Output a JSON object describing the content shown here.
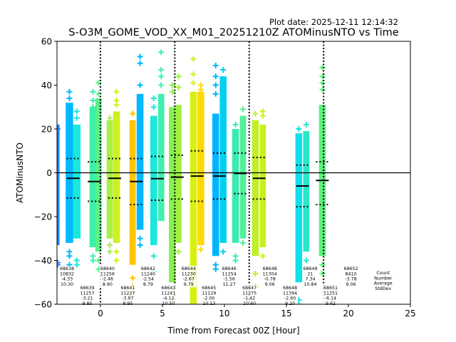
{
  "chart_data": {
    "type": "scatter",
    "title": "S-O3M_GOME_VOD_XX_M01_20251210Z ATOMinusNTO vs Time",
    "plot_date": "Plot date: 2025-12-11 12:14:32",
    "xlabel": "Time from Forecast 00Z [Hour]",
    "ylabel": "ATOMinusNTO",
    "xlim": [
      -3.5,
      25
    ],
    "ylim": [
      -60,
      60
    ],
    "xticks": [
      0,
      5,
      10,
      15,
      20,
      25
    ],
    "yticks": [
      -60,
      -40,
      -20,
      0,
      20,
      40,
      60
    ],
    "zero_line": 0,
    "forecast_markers": [
      0,
      6,
      12,
      18
    ],
    "marker": "+",
    "strips": [
      {
        "x": -3.45,
        "width": 0.3,
        "low": -33,
        "high": 22,
        "outliers": [
          -41,
          -42,
          20
        ],
        "color": "#1f80ff"
      },
      {
        "x": -2.5,
        "width": 0.6,
        "low": -32,
        "high": 32,
        "outliers": [
          -36,
          -38,
          -42,
          37,
          34,
          30
        ],
        "color": "#00b8ff"
      },
      {
        "x": -1.9,
        "width": 0.6,
        "low": -30,
        "high": 22,
        "outliers": [
          -40,
          -42,
          28,
          25
        ],
        "color": "#1ae8e0"
      },
      {
        "x": -0.6,
        "width": 0.55,
        "low": -34,
        "high": 30,
        "outliers": [
          -38,
          -40,
          37,
          33,
          30
        ],
        "color": "#3df0a8"
      },
      {
        "x": -0.15,
        "width": 0.5,
        "low": -36,
        "high": 34,
        "outliers": [
          -40,
          -44,
          41,
          36
        ],
        "color": "#5cf08a"
      },
      {
        "x": 0.75,
        "width": 0.5,
        "low": -30,
        "high": 24,
        "outliers": [
          -33,
          -36,
          25,
          22
        ],
        "color": "#aaf044"
      },
      {
        "x": 1.3,
        "width": 0.55,
        "low": -32,
        "high": 28,
        "outliers": [
          -36,
          -40,
          37,
          33,
          31
        ],
        "color": "#ccf020"
      },
      {
        "x": 2.6,
        "width": 0.5,
        "low": -42,
        "high": 24,
        "outliers": [
          -48,
          -52,
          -55,
          27,
          22
        ],
        "color": "#ffc400"
      },
      {
        "x": 3.2,
        "width": 0.55,
        "low": -26,
        "high": 36,
        "outliers": [
          -30,
          -33,
          53,
          50,
          40
        ],
        "color": "#00b8ff"
      },
      {
        "x": 4.3,
        "width": 0.55,
        "low": -33,
        "high": 26,
        "outliers": [
          -38,
          -45,
          30,
          34
        ],
        "color": "#1ae8d8"
      },
      {
        "x": 4.9,
        "width": 0.5,
        "low": -22,
        "high": 36,
        "outliers": [
          55,
          47,
          44,
          40
        ],
        "color": "#40f0b0"
      },
      {
        "x": 5.8,
        "width": 0.55,
        "low": -50,
        "high": 30,
        "outliers": [
          -54,
          -58,
          40,
          37
        ],
        "color": "#88f050"
      },
      {
        "x": 6.3,
        "width": 0.5,
        "low": -32,
        "high": 31,
        "outliers": [
          -36,
          44,
          39
        ],
        "color": "#a0f040"
      },
      {
        "x": 7.5,
        "width": 0.55,
        "low": -60,
        "high": 37,
        "outliers": [
          52,
          45,
          41
        ],
        "color": "#d8f010"
      },
      {
        "x": 8.1,
        "width": 0.55,
        "low": -33,
        "high": 37,
        "outliers": [
          -35,
          40,
          38
        ],
        "color": "#ffd800"
      },
      {
        "x": 9.3,
        "width": 0.55,
        "low": -38,
        "high": 27,
        "outliers": [
          -42,
          -44,
          49,
          44,
          40,
          36
        ],
        "color": "#00b4ff"
      },
      {
        "x": 9.9,
        "width": 0.55,
        "low": -32,
        "high": 44,
        "outliers": [
          -36,
          47
        ],
        "color": "#00d0f0"
      },
      {
        "x": 10.9,
        "width": 0.55,
        "low": -32,
        "high": 20,
        "outliers": [
          -38,
          -40,
          22
        ],
        "color": "#38ecb0"
      },
      {
        "x": 11.5,
        "width": 0.5,
        "low": -30,
        "high": 26,
        "outliers": [
          -32,
          29
        ],
        "color": "#50f09a"
      },
      {
        "x": 12.5,
        "width": 0.55,
        "low": -38,
        "high": 24,
        "outliers": [
          -46,
          -52,
          27
        ],
        "color": "#c0f028"
      },
      {
        "x": 13.1,
        "width": 0.5,
        "low": -34,
        "high": 22,
        "outliers": [
          -38,
          28,
          26
        ],
        "color": "#c8f020"
      },
      {
        "x": 16.0,
        "width": 0.55,
        "low": -50,
        "high": 18,
        "outliers": [
          -58,
          -60,
          20
        ],
        "color": "#10e0e8"
      },
      {
        "x": 16.6,
        "width": 0.5,
        "low": -36,
        "high": 19,
        "outliers": [
          -40,
          22
        ],
        "color": "#28e8c8"
      },
      {
        "x": 17.9,
        "width": 0.55,
        "low": -38,
        "high": 31,
        "outliers": [
          -42,
          -46,
          48,
          44,
          41,
          38
        ],
        "color": "#60f080"
      }
    ],
    "group_stats": [
      {
        "x": -2.2,
        "mean": -2.5,
        "sd_hi": 6.5,
        "sd_lo": -11.5
      },
      {
        "x": -0.5,
        "mean": -4.0,
        "sd_hi": 5.0,
        "sd_lo": -13.0
      },
      {
        "x": 1.15,
        "mean": -2.5,
        "sd_hi": 6.5,
        "sd_lo": -11.5
      },
      {
        "x": 2.9,
        "mean": -4.0,
        "sd_hi": 6.5,
        "sd_lo": -14.5
      },
      {
        "x": 4.6,
        "mean": -2.7,
        "sd_hi": 7.5,
        "sd_lo": -12.5
      },
      {
        "x": 6.2,
        "mean": -2.0,
        "sd_hi": 8.0,
        "sd_lo": -12.0
      },
      {
        "x": 7.8,
        "mean": -1.5,
        "sd_hi": 10.0,
        "sd_lo": -13.0
      },
      {
        "x": 9.6,
        "mean": -1.5,
        "sd_hi": 9.0,
        "sd_lo": -12.0
      },
      {
        "x": 11.3,
        "mean": -0.3,
        "sd_hi": 9.0,
        "sd_lo": -9.5
      },
      {
        "x": 12.8,
        "mean": -2.5,
        "sd_hi": 7.0,
        "sd_lo": -12.0
      },
      {
        "x": 16.3,
        "mean": -6.0,
        "sd_hi": 3.5,
        "sd_lo": -15.5
      },
      {
        "x": 17.9,
        "mean": -3.5,
        "sd_hi": 5.0,
        "sd_lo": -14.5
      }
    ],
    "stat_columns": [
      {
        "x": -3.0,
        "lines": [
          "68638",
          "10832",
          "-4.33",
          "10.30"
        ]
      },
      {
        "x": -1.25,
        "lines": [
          "68639",
          "11257",
          "-3.21",
          "9.85"
        ]
      },
      {
        "x": -0.7,
        "lines": [
          "Count",
          "Number",
          "Average",
          "StdDev"
        ]
      },
      {
        "x": 0.05,
        "lines": [
          "68640",
          "11256",
          "-2.46",
          "8.90"
        ]
      },
      {
        "x": 1.45,
        "lines": [
          "68641",
          "11227",
          "-3.97",
          "8.95"
        ]
      },
      {
        "x": 3.2,
        "lines": [
          "68642",
          "11240",
          "-2.54",
          "8.79"
        ]
      },
      {
        "x": 4.95,
        "lines": [
          "68643",
          "11241",
          "-4.12",
          "10.50"
        ]
      },
      {
        "x": 6.7,
        "lines": [
          "68644",
          "11230",
          "-2.67",
          "9.79"
        ]
      },
      {
        "x": 8.45,
        "lines": [
          "68645",
          "11129",
          "-2.00",
          "10.13"
        ]
      },
      {
        "x": 10.2,
        "lines": [
          "68646",
          "11254",
          "-1.56",
          "11.27"
        ]
      },
      {
        "x": 11.95,
        "lines": [
          "68647",
          "11275",
          "-1.42",
          "10.60"
        ]
      },
      {
        "x": 13.7,
        "lines": [
          "68648",
          "11304",
          "-0.78",
          "9.06"
        ]
      },
      {
        "x": 15.4,
        "lines": [
          "68648",
          "11394",
          "-2.60",
          "9.20"
        ]
      },
      {
        "x": 16.2,
        "lines": [
          "68649",
          "21",
          "7.34",
          "10.84"
        ]
      },
      {
        "x": 19.45,
        "lines": [
          "68651",
          "11251",
          "-6.14",
          "9.62"
        ]
      },
      {
        "x": 21.2,
        "lines": [
          "68652",
          "8410",
          "-3.78",
          "9.06"
        ]
      }
    ]
  }
}
